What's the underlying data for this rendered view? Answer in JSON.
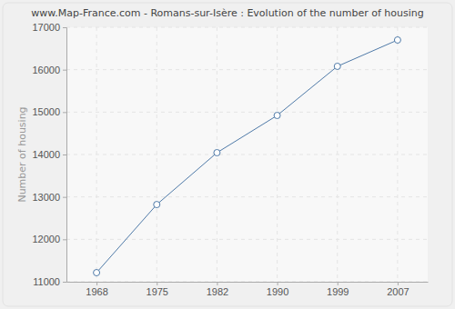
{
  "chart_data": {
    "type": "line",
    "title": "www.Map-France.com - Romans-sur-Isère : Evolution of the number of housing",
    "y_label": "Number of housing",
    "categories": [
      "1968",
      "1975",
      "1982",
      "1990",
      "1999",
      "2007"
    ],
    "values": [
      11214,
      12820,
      14043,
      14921,
      16079,
      16700
    ],
    "color": "#4f7aa8",
    "marker": "circle",
    "ylim": [
      11000,
      17000
    ],
    "yticks": [
      11000,
      12000,
      13000,
      14000,
      15000,
      16000,
      17000
    ],
    "grid": true
  }
}
